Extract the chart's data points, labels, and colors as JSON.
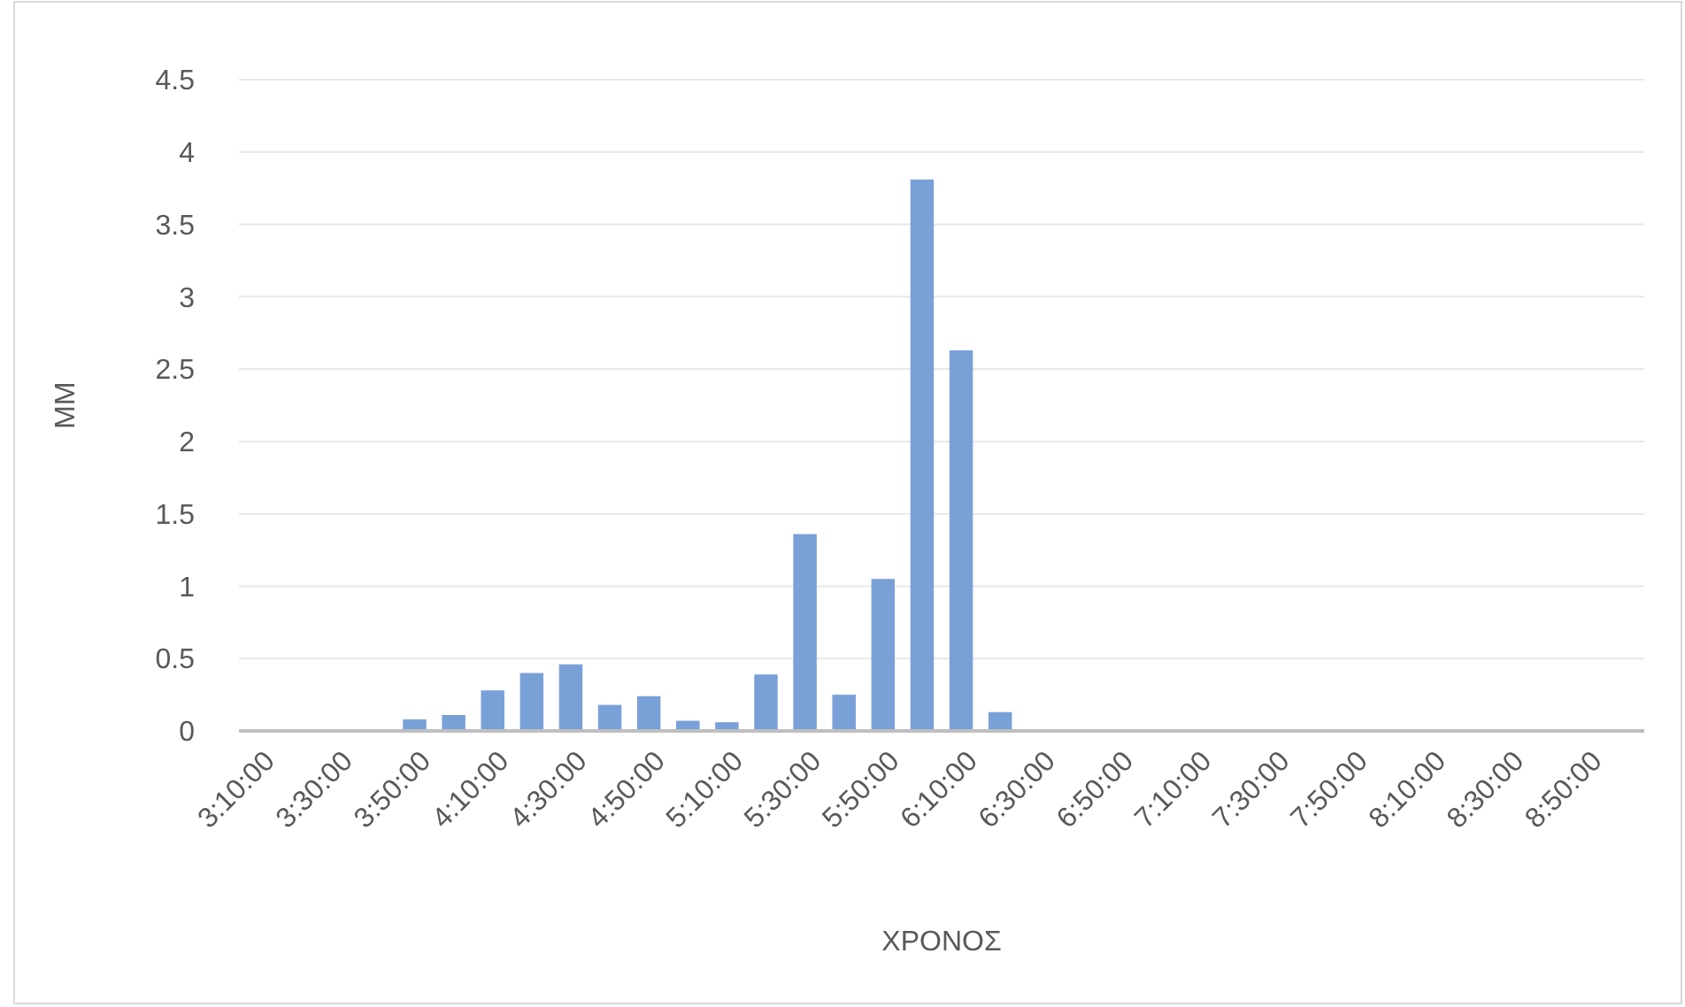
{
  "chart_data": {
    "type": "bar",
    "xlabel": "ΧΡΟΝΟΣ",
    "ylabel": "MM",
    "categories": [
      "3:10:00",
      null,
      "3:30:00",
      null,
      "3:50:00",
      null,
      "4:10:00",
      null,
      "4:30:00",
      null,
      "4:50:00",
      null,
      "5:10:00",
      null,
      "5:30:00",
      null,
      "5:50:00",
      null,
      "6:10:00",
      null,
      "6:30:00",
      null,
      "6:50:00",
      null,
      "7:10:00",
      null,
      "7:30:00",
      null,
      "7:50:00",
      null,
      "8:10:00",
      null,
      "8:30:00",
      null,
      "8:50:00",
      null
    ],
    "values": [
      0,
      0,
      0,
      0,
      0.08,
      0.11,
      0.28,
      0.4,
      0.46,
      0.18,
      0.24,
      0.07,
      0.06,
      0.39,
      1.36,
      0.25,
      1.05,
      3.81,
      2.63,
      0.13,
      0,
      0,
      0,
      0,
      0,
      0,
      0,
      0,
      0,
      0,
      0,
      0,
      0,
      0,
      0,
      0
    ],
    "color": "#7aa0d8",
    "ylim": [
      0,
      4.5
    ],
    "yticks": [
      0,
      0.5,
      1,
      1.5,
      2,
      2.5,
      3,
      3.5,
      4,
      4.5
    ],
    "grid": "y"
  }
}
